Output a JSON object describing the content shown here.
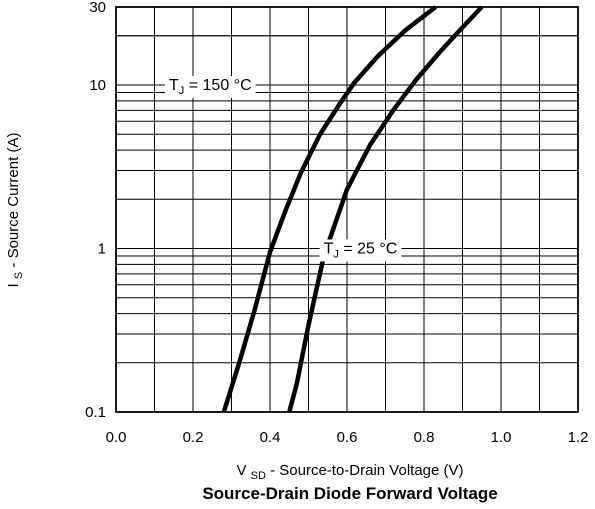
{
  "chart_data": {
    "type": "line",
    "title": "Source-Drain Diode Forward Voltage",
    "xlabel": {
      "main": "V",
      "sub": "SD",
      "rest": " - Source-to-Drain Voltage (V)"
    },
    "ylabel": {
      "main": "I",
      "sub": "S",
      "rest": " - Source Current (A)"
    },
    "x_scale": "linear",
    "y_scale": "log",
    "xlim": [
      0.0,
      1.2
    ],
    "ylim": [
      0.1,
      30
    ],
    "xticks": [
      "0.0",
      "0.2",
      "0.4",
      "0.6",
      "0.8",
      "1.0",
      "1.2"
    ],
    "yticks": [
      "0.1",
      "1",
      "10",
      "30"
    ],
    "grid": true,
    "series": [
      {
        "name": {
          "main": "T",
          "sub": "J",
          "rest": " = 150 °C"
        },
        "x": [
          0.28,
          0.32,
          0.36,
          0.4,
          0.44,
          0.48,
          0.53,
          0.58,
          0.62,
          0.68,
          0.75,
          0.83
        ],
        "y": [
          0.1,
          0.2,
          0.42,
          0.95,
          1.7,
          2.9,
          5.0,
          7.6,
          10.4,
          15.0,
          21.5,
          30
        ]
      },
      {
        "name": {
          "main": "T",
          "sub": "J",
          "rest": " = 25 °C"
        },
        "x": [
          0.45,
          0.47,
          0.5,
          0.54,
          0.6,
          0.66,
          0.72,
          0.78,
          0.84,
          0.9,
          0.95
        ],
        "y": [
          0.1,
          0.15,
          0.34,
          0.9,
          2.3,
          4.3,
          7.0,
          10.8,
          15.8,
          22.5,
          30
        ]
      }
    ]
  }
}
